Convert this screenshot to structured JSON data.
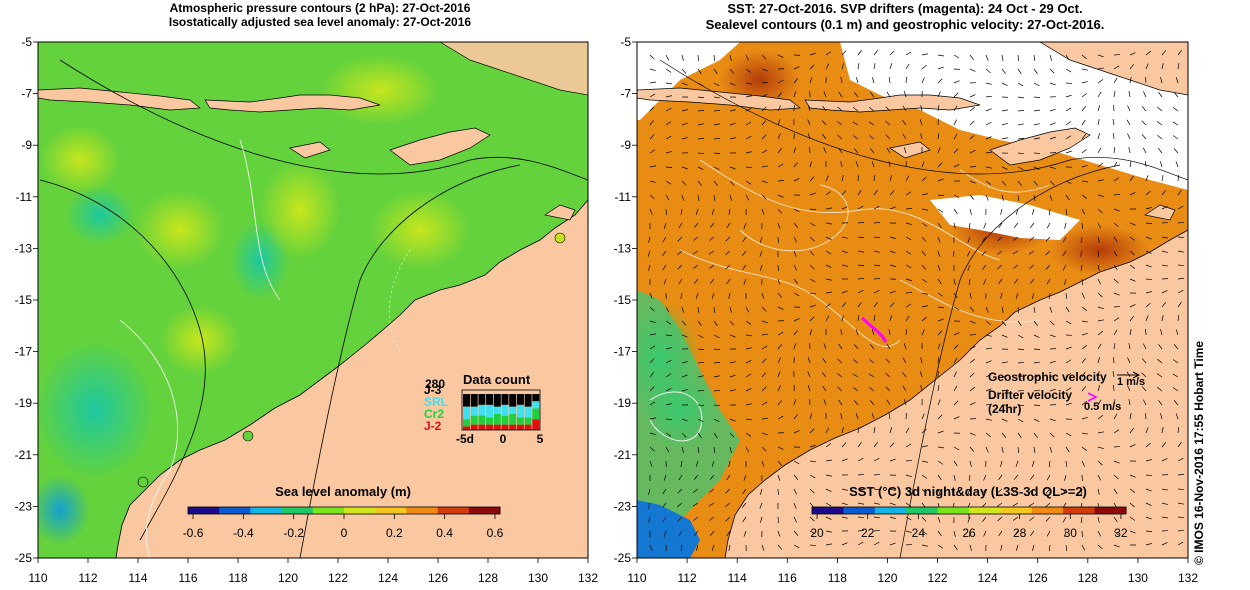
{
  "left_panel": {
    "title_line1": "Atmospheric pressure contours (2 hPa): 27-Oct-2016",
    "title_line2": "Isostatically adjusted sea level anomaly: 27-Oct-2016",
    "colorbar_label": "Sea level anomaly (m)",
    "colorbar_ticks": [
      "-0.6",
      "-0.4",
      "-0.2",
      "0",
      "0.2",
      "0.4",
      "0.6"
    ],
    "colorbar_colors": [
      "#1a0a8c",
      "#0a5ad2",
      "#12b4e6",
      "#1ec864",
      "#78e61e",
      "#d2e61e",
      "#f5c81e",
      "#f08c14",
      "#d23c0a",
      "#8c0a0a"
    ],
    "data_count": {
      "title": "Data count",
      "scale_label": "280",
      "satellites": [
        {
          "name": "J-3",
          "color": "#000000"
        },
        {
          "name": "SRL",
          "color": "#40e0f0"
        },
        {
          "name": "Cr2",
          "color": "#20d040"
        },
        {
          "name": "J-2",
          "color": "#e01010"
        }
      ],
      "axis_ticks": [
        "-5d",
        "0",
        "5"
      ],
      "bars": [
        [
          0.35,
          0.35,
          0.2,
          0.1
        ],
        [
          0.35,
          0.25,
          0.25,
          0.15
        ],
        [
          0.3,
          0.3,
          0.25,
          0.15
        ],
        [
          0.3,
          0.35,
          0.2,
          0.15
        ],
        [
          0.35,
          0.2,
          0.3,
          0.15
        ],
        [
          0.3,
          0.3,
          0.25,
          0.15
        ],
        [
          0.35,
          0.2,
          0.3,
          0.15
        ],
        [
          0.3,
          0.35,
          0.2,
          0.15
        ],
        [
          0.35,
          0.3,
          0.2,
          0.15
        ],
        [
          0.2,
          0.2,
          0.3,
          0.3
        ]
      ]
    }
  },
  "right_panel": {
    "title_line1": "SST: 27-Oct-2016. SVP drifters (magenta): 24 Oct - 29 Oct.",
    "title_line2": "Sealevel contours (0.1 m) and geostrophic velocity: 27-Oct-2016.",
    "colorbar_label": "SST (°C) 3d night&day (L3S-3d QL>=2)",
    "colorbar_ticks": [
      "20",
      "22",
      "24",
      "26",
      "28",
      "30",
      "32"
    ],
    "colorbar_colors": [
      "#1a0a8c",
      "#0a5ad2",
      "#12b4e6",
      "#1ec864",
      "#78e61e",
      "#d2e61e",
      "#f5c81e",
      "#f08c14",
      "#d23c0a",
      "#8c0a0a"
    ],
    "legend": {
      "geo_label": "Geostrophic velocity",
      "geo_speed": "1 m/s",
      "drifter_label": "Drifter velocity",
      "drifter_sub": "(24hr)",
      "drifter_speed": "0.5 m/s"
    },
    "side_credit": "© IMOS 16-Nov-2016 17:55 Hobart Time"
  },
  "axes": {
    "x_ticks": [
      "110",
      "112",
      "114",
      "116",
      "118",
      "120",
      "122",
      "124",
      "126",
      "128",
      "130",
      "132"
    ],
    "y_ticks": [
      "-5",
      "-7",
      "-9",
      "-11",
      "-13",
      "-15",
      "-17",
      "-19",
      "-21",
      "-23",
      "-25"
    ],
    "lon_range": [
      110,
      132
    ],
    "lat_range": [
      -25,
      -5
    ]
  },
  "colors": {
    "land": "#fac8a0",
    "ocean_sla": "#64d23c",
    "ocean_sst": "#e88c14",
    "drifter": "#ff00ff"
  }
}
